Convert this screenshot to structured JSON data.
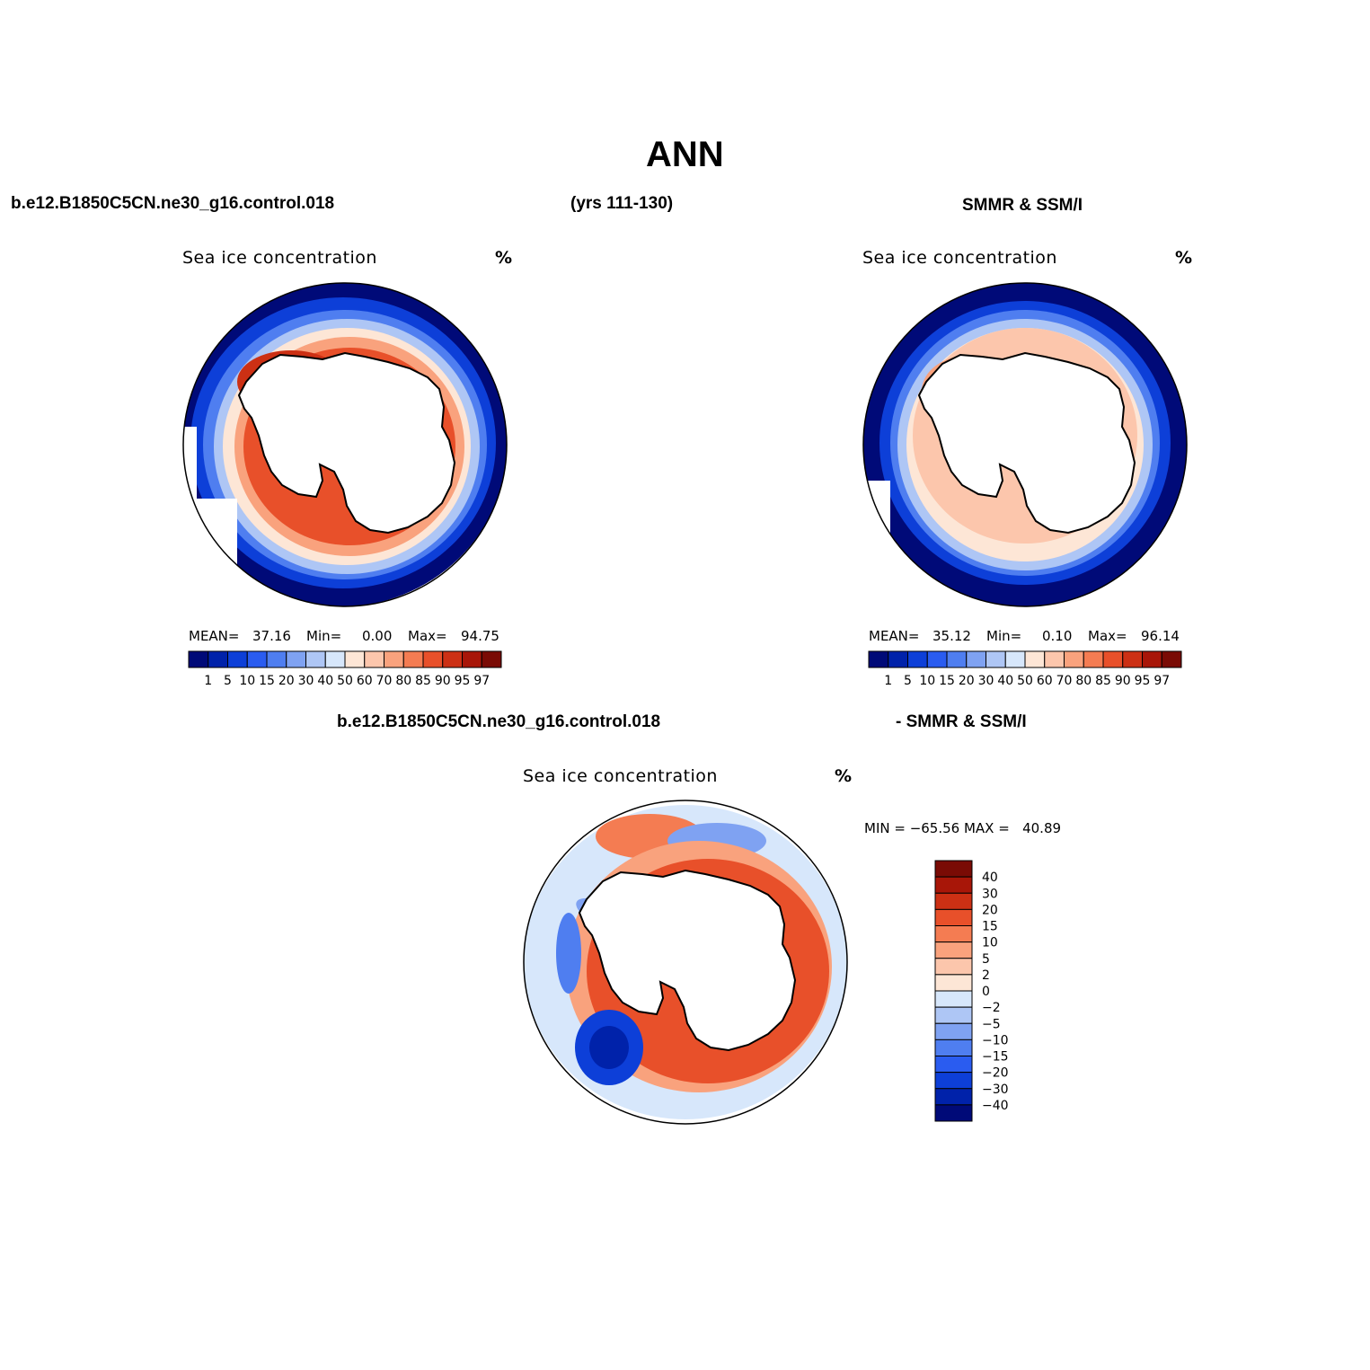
{
  "title": "ANN",
  "case_label": "b.e12.B1850C5CN.ne30_g16.control.018",
  "years_label": "(yrs 111-130)",
  "obs_label": "SMMR & SSM/I",
  "diff_case_label": "b.e12.B1850C5CN.ne30_g16.control.018",
  "diff_obs_label": "- SMMR & SSM/I",
  "panels": {
    "model": {
      "var_label": "Sea ice concentration",
      "unit": "%",
      "mean_label": "MEAN=",
      "mean": "37.16",
      "min_label": "Min=",
      "min": "0.00",
      "max_label": "Max=",
      "max": "94.75"
    },
    "obs": {
      "var_label": "Sea ice concentration",
      "unit": "%",
      "mean_label": "MEAN=",
      "mean": "35.12",
      "min_label": "Min=",
      "min": "0.10",
      "max_label": "Max=",
      "max": "96.14"
    },
    "diff": {
      "var_label": "Sea ice concentration",
      "unit": "%",
      "minmax_text": "MIN = −65.56 MAX =   40.89"
    }
  },
  "colorbar_horizontal": {
    "labels": [
      "1",
      "5",
      "10",
      "15",
      "20",
      "30",
      "40",
      "50",
      "60",
      "70",
      "80",
      "85",
      "90",
      "95",
      "97"
    ],
    "colors": [
      "#000a78",
      "#0022aa",
      "#0d3fd8",
      "#2a5cf0",
      "#4f7ef0",
      "#7fa2f2",
      "#aec6f5",
      "#d7e7fb",
      "#fde6d6",
      "#fcc6ac",
      "#f9a27d",
      "#f47c52",
      "#e8502a",
      "#cc3014",
      "#a81608",
      "#7a0b05"
    ]
  },
  "colorbar_vertical": {
    "labels": [
      "40",
      "30",
      "20",
      "15",
      "10",
      "5",
      "2",
      "0",
      "−2",
      "−5",
      "−10",
      "−15",
      "−20",
      "−30",
      "−40"
    ],
    "colors": [
      "#7a0b05",
      "#a81608",
      "#cc3014",
      "#e8502a",
      "#f47c52",
      "#f9a27d",
      "#fcc6ac",
      "#fde6d6",
      "#d7e7fb",
      "#aec6f5",
      "#7fa2f2",
      "#4f7ef0",
      "#2a5cf0",
      "#0d3fd8",
      "#0022aa",
      "#000a78"
    ]
  }
}
